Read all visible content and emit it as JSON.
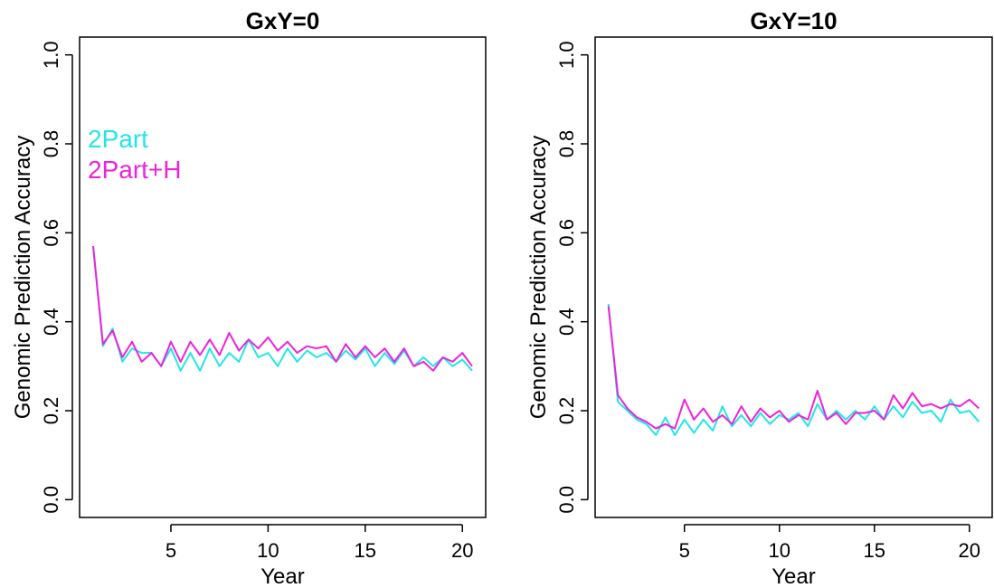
{
  "chart_data": [
    {
      "type": "line",
      "title": "GxY=0",
      "xlabel": "Year",
      "ylabel": "Genomic Prediction Accuracy",
      "xlim": [
        0.3,
        21.2
      ],
      "ylim": [
        -0.04,
        1.04
      ],
      "x_ticks": [
        5,
        10,
        15,
        20
      ],
      "x_tick_labels": [
        "5",
        "10",
        "15",
        "20"
      ],
      "y_ticks": [
        0,
        0.2,
        0.4,
        0.6,
        0.8,
        1
      ],
      "y_tick_labels": [
        "0.0",
        "0.2",
        "0.4",
        "0.6",
        "0.8",
        "1.0"
      ],
      "grid": false,
      "legend_position": "top-left",
      "x": [
        1,
        1.5,
        2,
        2.5,
        3,
        3.5,
        4,
        4.5,
        5,
        5.5,
        6,
        6.5,
        7,
        7.5,
        8,
        8.5,
        9,
        9.5,
        10,
        10.5,
        11,
        11.5,
        12,
        12.5,
        13,
        13.5,
        14,
        14.5,
        15,
        15.5,
        16,
        16.5,
        17,
        17.5,
        18,
        18.5,
        19,
        19.5,
        20,
        20.5
      ],
      "series": [
        {
          "name": "2Part",
          "color": "#22e6e6",
          "values": [
            0.57,
            0.345,
            0.385,
            0.31,
            0.34,
            0.33,
            0.33,
            0.3,
            0.34,
            0.29,
            0.33,
            0.29,
            0.34,
            0.3,
            0.33,
            0.31,
            0.36,
            0.32,
            0.33,
            0.3,
            0.34,
            0.31,
            0.335,
            0.32,
            0.33,
            0.31,
            0.335,
            0.315,
            0.34,
            0.3,
            0.33,
            0.305,
            0.335,
            0.3,
            0.32,
            0.3,
            0.32,
            0.3,
            0.315,
            0.29
          ]
        },
        {
          "name": "2Part+H",
          "color": "#ee22dd",
          "values": [
            0.57,
            0.35,
            0.38,
            0.32,
            0.355,
            0.31,
            0.33,
            0.3,
            0.355,
            0.31,
            0.355,
            0.325,
            0.36,
            0.325,
            0.375,
            0.335,
            0.36,
            0.34,
            0.365,
            0.335,
            0.355,
            0.33,
            0.345,
            0.34,
            0.345,
            0.31,
            0.35,
            0.32,
            0.345,
            0.32,
            0.34,
            0.31,
            0.34,
            0.3,
            0.31,
            0.29,
            0.32,
            0.31,
            0.33,
            0.3
          ]
        }
      ]
    },
    {
      "type": "line",
      "title": "GxY=10",
      "xlabel": "Year",
      "ylabel": "Genomic Prediction Accuracy",
      "xlim": [
        0.3,
        21.2
      ],
      "ylim": [
        -0.04,
        1.04
      ],
      "x_ticks": [
        5,
        10,
        15,
        20
      ],
      "x_tick_labels": [
        "5",
        "10",
        "15",
        "20"
      ],
      "y_ticks": [
        0,
        0.2,
        0.4,
        0.6,
        0.8,
        1
      ],
      "y_tick_labels": [
        "0.0",
        "0.2",
        "0.4",
        "0.6",
        "0.8",
        "1.0"
      ],
      "grid": false,
      "x": [
        1,
        1.5,
        2,
        2.5,
        3,
        3.5,
        4,
        4.5,
        5,
        5.5,
        6,
        6.5,
        7,
        7.5,
        8,
        8.5,
        9,
        9.5,
        10,
        10.5,
        11,
        11.5,
        12,
        12.5,
        13,
        13.5,
        14,
        14.5,
        15,
        15.5,
        16,
        16.5,
        17,
        17.5,
        18,
        18.5,
        19,
        19.5,
        20,
        20.5
      ],
      "series": [
        {
          "name": "2Part",
          "color": "#22e6e6",
          "values": [
            0.44,
            0.22,
            0.2,
            0.18,
            0.17,
            0.145,
            0.185,
            0.145,
            0.18,
            0.15,
            0.18,
            0.155,
            0.21,
            0.165,
            0.19,
            0.165,
            0.195,
            0.17,
            0.19,
            0.18,
            0.195,
            0.165,
            0.215,
            0.18,
            0.2,
            0.18,
            0.2,
            0.18,
            0.21,
            0.18,
            0.21,
            0.185,
            0.22,
            0.195,
            0.2,
            0.175,
            0.225,
            0.195,
            0.2,
            0.175
          ]
        },
        {
          "name": "2Part+H",
          "color": "#ee22dd",
          "values": [
            0.435,
            0.235,
            0.205,
            0.185,
            0.175,
            0.16,
            0.17,
            0.16,
            0.225,
            0.18,
            0.205,
            0.175,
            0.19,
            0.17,
            0.21,
            0.175,
            0.205,
            0.185,
            0.2,
            0.175,
            0.19,
            0.18,
            0.245,
            0.18,
            0.195,
            0.17,
            0.195,
            0.195,
            0.2,
            0.18,
            0.235,
            0.205,
            0.24,
            0.21,
            0.215,
            0.205,
            0.215,
            0.21,
            0.225,
            0.205
          ]
        }
      ]
    }
  ]
}
